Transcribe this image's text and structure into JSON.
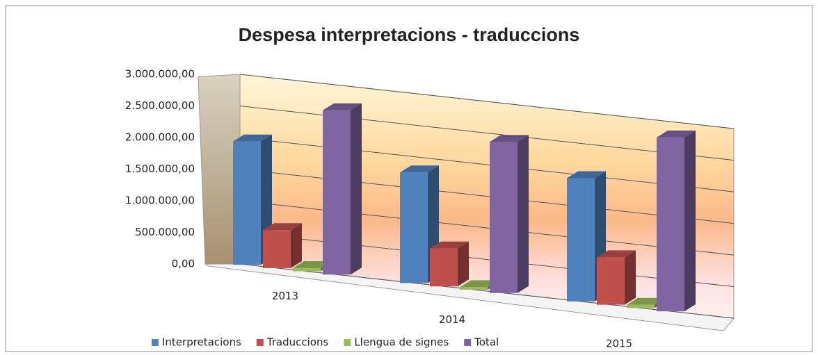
{
  "chart_data": {
    "type": "bar3d",
    "title": "Despesa interpretacions - traduccions",
    "categories": [
      "2013",
      "2014",
      "2015"
    ],
    "series": [
      {
        "name": "Interpretacions",
        "color": "#4f81bd",
        "values": [
          1950000,
          1750000,
          1950000
        ]
      },
      {
        "name": "Traduccions",
        "color": "#c0504d",
        "values": [
          600000,
          600000,
          750000
        ]
      },
      {
        "name": "Llengua de signes",
        "color": "#9bbb59",
        "values": [
          50000,
          40000,
          50000
        ]
      },
      {
        "name": "Total",
        "color": "#8064a2",
        "values": [
          2600000,
          2390000,
          2750000
        ]
      }
    ],
    "ylim": [
      0,
      3000000
    ],
    "yticks": [
      {
        "value": 0,
        "label": "0,00"
      },
      {
        "value": 500000,
        "label": "500.000,00"
      },
      {
        "value": 1000000,
        "label": "1.000.000,00"
      },
      {
        "value": 1500000,
        "label": "1.500.000,00"
      },
      {
        "value": 2000000,
        "label": "2.000.000,00"
      },
      {
        "value": 2500000,
        "label": "2.500.000,00"
      },
      {
        "value": 3000000,
        "label": "3.000.000,00"
      }
    ],
    "grid": true,
    "legend": "bottom"
  }
}
